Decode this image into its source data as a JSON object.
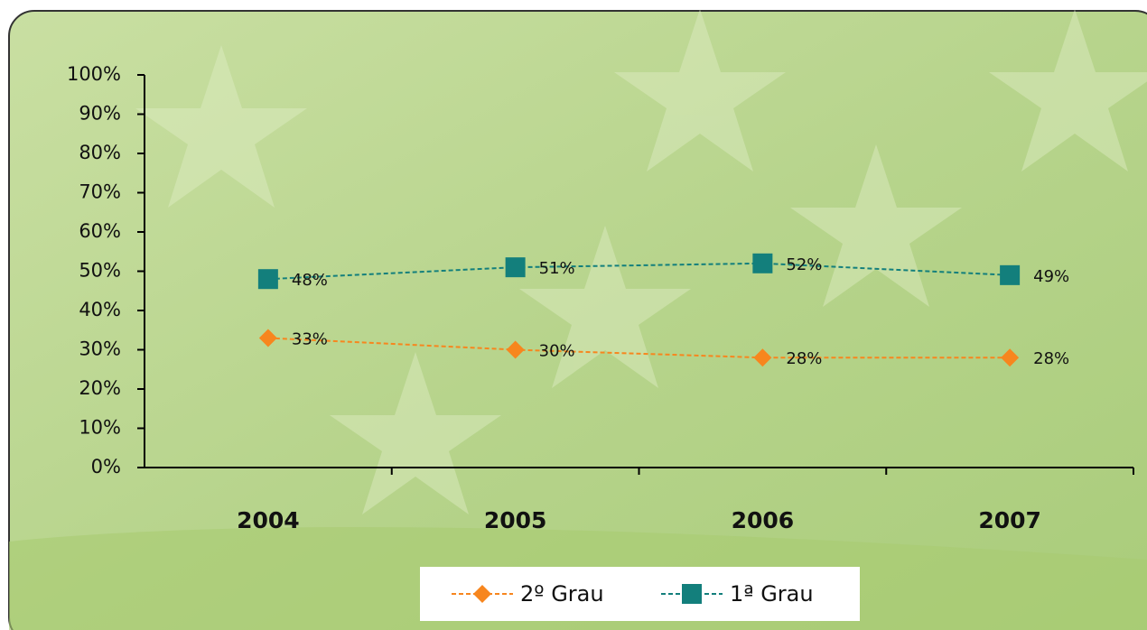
{
  "chart_data": {
    "type": "line",
    "categories": [
      "2004",
      "2005",
      "2006",
      "2007"
    ],
    "series": [
      {
        "name": "2º Grau",
        "color": "#f7861e",
        "marker": "diamond",
        "values": [
          33,
          30,
          28,
          28
        ],
        "value_labels": [
          "33%",
          "30%",
          "28%",
          "28%"
        ]
      },
      {
        "name": "1ª Grau",
        "color": "#137f7c",
        "marker": "square",
        "values": [
          48,
          51,
          52,
          49
        ],
        "value_labels": [
          "48%",
          "51%",
          "52%",
          "49%"
        ]
      }
    ],
    "ylim": [
      0,
      100
    ],
    "yticks": [
      {
        "value": 0,
        "label": "0%"
      },
      {
        "value": 10,
        "label": "10%"
      },
      {
        "value": 20,
        "label": "20%"
      },
      {
        "value": 30,
        "label": "30%"
      },
      {
        "value": 40,
        "label": "40%"
      },
      {
        "value": 50,
        "label": "50%"
      },
      {
        "value": 60,
        "label": "60%"
      },
      {
        "value": 70,
        "label": "70%"
      },
      {
        "value": 80,
        "label": "80%"
      },
      {
        "value": 90,
        "label": "90%"
      },
      {
        "value": 100,
        "label": "100%"
      }
    ],
    "grid": false,
    "legend": "bottom"
  }
}
